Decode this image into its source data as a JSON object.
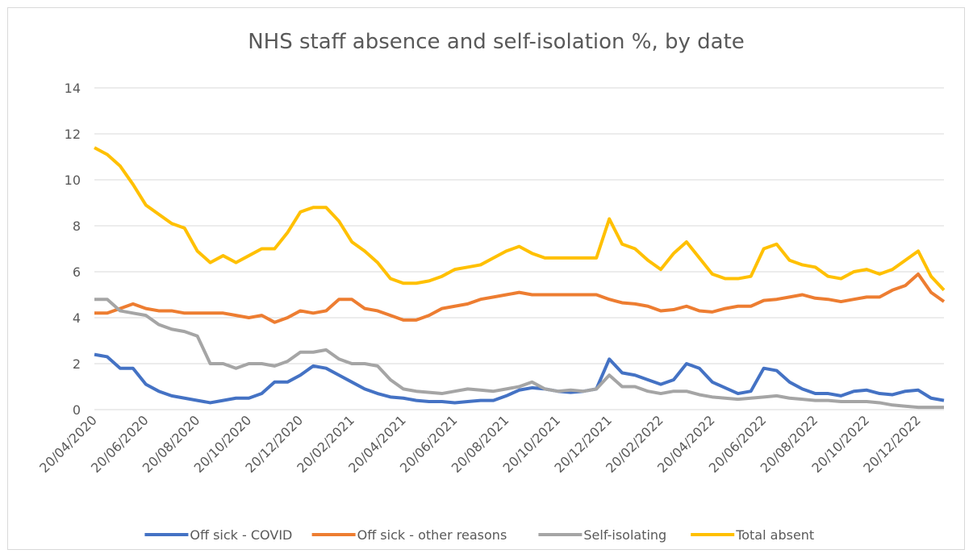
{
  "chart_data": {
    "type": "line",
    "title": "NHS staff absence and self-isolation %, by date",
    "categories": [
      "20/04/2020",
      null,
      null,
      null,
      "20/06/2020",
      null,
      null,
      null,
      "20/08/2020",
      null,
      null,
      null,
      "20/10/2020",
      null,
      null,
      null,
      "20/12/2020",
      null,
      null,
      null,
      "20/02/2021",
      null,
      null,
      null,
      "20/04/2021",
      null,
      null,
      null,
      "20/06/2021",
      null,
      null,
      null,
      "20/08/2021",
      null,
      null,
      null,
      "20/10/2021",
      null,
      null,
      null,
      "20/12/2021",
      null,
      null,
      null,
      "20/02/2022",
      null,
      null,
      null,
      "20/04/2022",
      null,
      null,
      null,
      "20/06/2022",
      null,
      null,
      null,
      "20/08/2022",
      null,
      null,
      null,
      "20/10/2022",
      null,
      null,
      null,
      "20/12/2022",
      null,
      null
    ],
    "series": [
      {
        "name": "Off sick - COVID",
        "color": "#4472c4",
        "values": [
          2.4,
          2.3,
          1.8,
          1.8,
          1.1,
          0.8,
          0.6,
          0.5,
          0.4,
          0.3,
          0.4,
          0.5,
          0.5,
          0.7,
          1.2,
          1.2,
          1.5,
          1.9,
          1.8,
          1.5,
          1.2,
          0.9,
          0.7,
          0.55,
          0.5,
          0.4,
          0.35,
          0.35,
          0.3,
          0.35,
          0.4,
          0.4,
          0.6,
          0.85,
          0.95,
          0.9,
          0.8,
          0.75,
          0.8,
          0.9,
          2.2,
          1.6,
          1.5,
          1.3,
          1.1,
          1.3,
          2.0,
          1.8,
          1.2,
          0.95,
          0.7,
          0.8,
          1.8,
          1.7,
          1.2,
          0.9,
          0.7,
          0.7,
          0.6,
          0.8,
          0.85,
          0.7,
          0.65,
          0.8,
          0.85,
          0.5,
          0.4
        ]
      },
      {
        "name": "Off sick - other reasons",
        "color": "#ed7d31",
        "values": [
          4.2,
          4.2,
          4.4,
          4.6,
          4.4,
          4.3,
          4.3,
          4.2,
          4.2,
          4.2,
          4.2,
          4.1,
          4.0,
          4.1,
          3.8,
          4.0,
          4.3,
          4.2,
          4.3,
          4.8,
          4.8,
          4.4,
          4.3,
          4.1,
          3.9,
          3.9,
          4.1,
          4.4,
          4.5,
          4.6,
          4.8,
          4.9,
          5.0,
          5.1,
          5.0,
          5.0,
          5.0,
          5.0,
          5.0,
          5.0,
          4.8,
          4.65,
          4.6,
          4.5,
          4.3,
          4.35,
          4.5,
          4.3,
          4.25,
          4.4,
          4.5,
          4.5,
          4.75,
          4.8,
          4.9,
          5.0,
          4.85,
          4.8,
          4.7,
          4.8,
          4.9,
          4.9,
          5.2,
          5.4,
          5.9,
          5.1,
          4.7
        ]
      },
      {
        "name": "Self-isolating",
        "color": "#a5a5a5",
        "values": [
          4.8,
          4.8,
          4.3,
          4.2,
          4.1,
          3.7,
          3.5,
          3.4,
          3.2,
          2.0,
          2.0,
          1.8,
          2.0,
          2.0,
          1.9,
          2.1,
          2.5,
          2.5,
          2.6,
          2.2,
          2.0,
          2.0,
          1.9,
          1.3,
          0.9,
          0.8,
          0.75,
          0.7,
          0.8,
          0.9,
          0.85,
          0.8,
          0.9,
          1.0,
          1.2,
          0.9,
          0.8,
          0.85,
          0.8,
          0.9,
          1.5,
          1.0,
          1.0,
          0.8,
          0.7,
          0.8,
          0.8,
          0.65,
          0.55,
          0.5,
          0.45,
          0.5,
          0.55,
          0.6,
          0.5,
          0.45,
          0.4,
          0.4,
          0.35,
          0.35,
          0.35,
          0.3,
          0.2,
          0.15,
          0.1,
          0.1,
          0.1
        ]
      },
      {
        "name": "Total absent",
        "color": "#ffc000",
        "values": [
          11.4,
          11.1,
          10.6,
          9.8,
          8.9,
          8.5,
          8.1,
          7.9,
          6.9,
          6.4,
          6.7,
          6.4,
          6.7,
          7.0,
          7.0,
          7.7,
          8.6,
          8.8,
          8.8,
          8.2,
          7.3,
          6.9,
          6.4,
          5.7,
          5.5,
          5.5,
          5.6,
          5.8,
          6.1,
          6.2,
          6.3,
          6.6,
          6.9,
          7.1,
          6.8,
          6.6,
          6.6,
          6.6,
          6.6,
          6.6,
          8.3,
          7.2,
          7.0,
          6.5,
          6.1,
          6.8,
          7.3,
          6.6,
          5.9,
          5.7,
          5.7,
          5.8,
          7.0,
          7.2,
          6.5,
          6.3,
          6.2,
          5.8,
          5.7,
          6.0,
          6.1,
          5.9,
          6.1,
          6.5,
          6.9,
          5.8,
          5.2
        ]
      }
    ],
    "ylim": [
      0,
      14
    ],
    "yticks": [
      0,
      2,
      4,
      6,
      8,
      10,
      12,
      14
    ],
    "grid": true,
    "legend": "bottom"
  }
}
